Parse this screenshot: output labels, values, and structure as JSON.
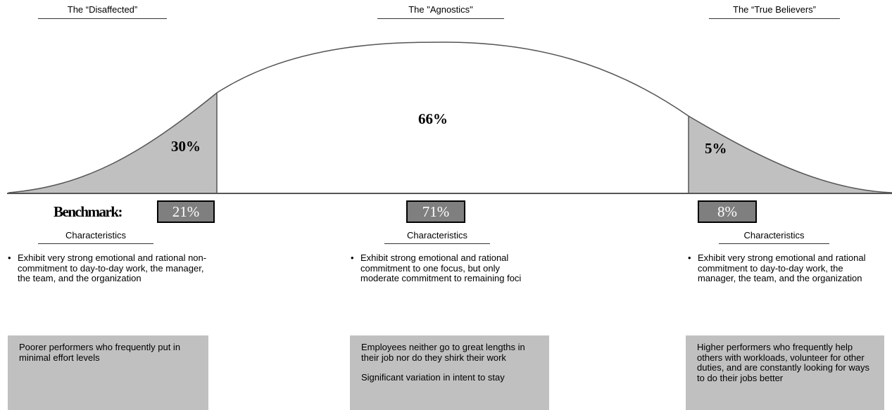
{
  "segments": [
    {
      "title": "The “Disaffected”",
      "share": "30%",
      "benchmark": "21%",
      "characteristics_heading": "Characteristics",
      "characteristic": "Exhibit very strong emotional and rational non-commitment to day-to-day work, the manager, the team, and the organization",
      "box_text": [
        "Poorer performers who frequently put in minimal effort levels"
      ]
    },
    {
      "title": "The \"Agnostics\"",
      "share": "66%",
      "benchmark": "71%",
      "characteristics_heading": "Characteristics",
      "characteristic": "Exhibit strong emotional and rational commitment to one focus, but only moderate commitment to remaining foci",
      "box_text": [
        "Employees neither go to great lengths in their job nor do they shirk their work",
        "Significant variation in intent to stay"
      ]
    },
    {
      "title": "The “True Believers”",
      "share": "5%",
      "benchmark": "8%",
      "characteristics_heading": "Characteristics",
      "characteristic": "Exhibit very strong emotional and rational commitment to day-to-day work, the manager, the team, and the organization",
      "box_text": [
        "Higher performers who frequently help others with workloads, volunteer for other duties, and are constantly looking for ways to do their jobs better"
      ]
    }
  ],
  "benchmark_label": "Benchmark:",
  "bullet_glyph": "•",
  "colors": {
    "tail_fill": "#c0c0c0",
    "benchmark_box": "#7f7f7f",
    "text_box": "#c0c0c0",
    "curve": "#555555"
  }
}
